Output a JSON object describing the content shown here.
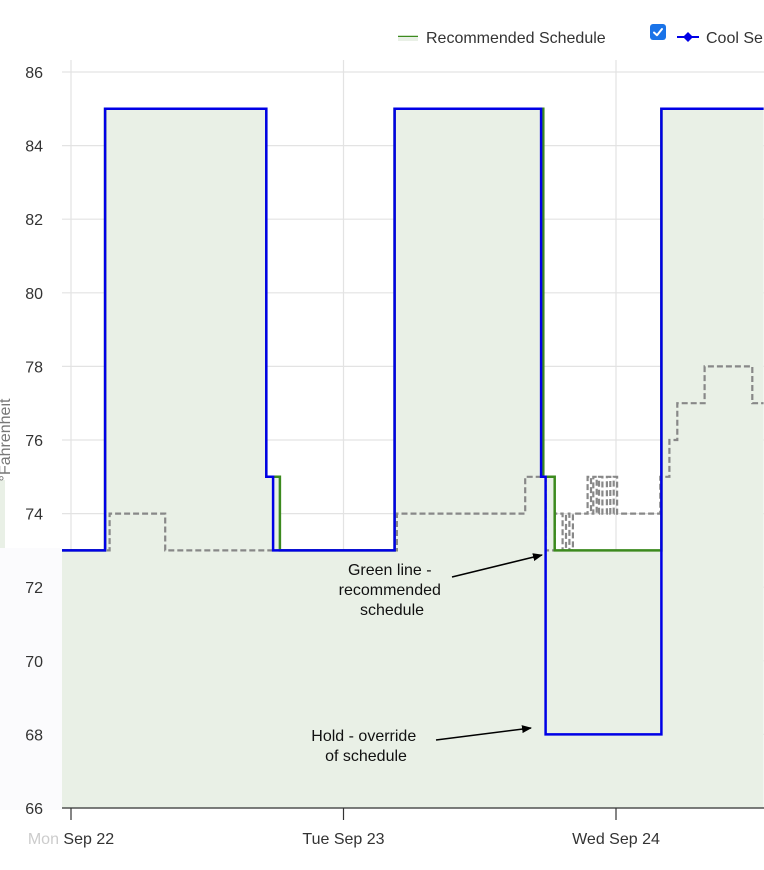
{
  "chart_data": {
    "type": "line",
    "ylabel": "°Fahrenheit",
    "ylim": [
      66,
      86
    ],
    "y_ticks": [
      66,
      68,
      70,
      72,
      74,
      76,
      78,
      80,
      82,
      84,
      86
    ],
    "x_ticks": [
      {
        "x": 0,
        "label": "Mon Sep 22"
      },
      {
        "x": 24,
        "label": "Tue Sep 23"
      },
      {
        "x": 48,
        "label": "Wed Sep 24"
      }
    ],
    "grid": true,
    "legend_position": "top",
    "legend": [
      {
        "label": "Recommended Schedule",
        "color": "#3c8a1e",
        "checked": false
      },
      {
        "label": "Cool Se",
        "color": "#0000e6",
        "checked": true
      }
    ],
    "series": [
      {
        "name": "Recommended Schedule",
        "color": "#3c8a1e",
        "fill": "#e9f0e6",
        "style": "step",
        "points": [
          [
            -0.8,
            73
          ],
          [
            3,
            73
          ],
          [
            3,
            85
          ],
          [
            17.2,
            85
          ],
          [
            17.2,
            75
          ],
          [
            18.4,
            75
          ],
          [
            18.4,
            73
          ],
          [
            28.5,
            73
          ],
          [
            28.5,
            85
          ],
          [
            41.6,
            85
          ],
          [
            41.6,
            75
          ],
          [
            42.6,
            75
          ],
          [
            42.6,
            73
          ],
          [
            52,
            73
          ],
          [
            52,
            85
          ],
          [
            61,
            85
          ]
        ]
      },
      {
        "name": "Cool Se",
        "color": "#0000e6",
        "style": "step",
        "points": [
          [
            -0.8,
            73
          ],
          [
            3,
            73
          ],
          [
            3,
            85
          ],
          [
            17.2,
            85
          ],
          [
            17.2,
            75
          ],
          [
            17.8,
            75
          ],
          [
            17.8,
            73
          ],
          [
            28.5,
            73
          ],
          [
            28.5,
            85
          ],
          [
            41.4,
            85
          ],
          [
            41.4,
            75
          ],
          [
            41.8,
            75
          ],
          [
            41.8,
            68
          ],
          [
            52,
            68
          ],
          [
            52,
            85
          ],
          [
            61,
            85
          ]
        ]
      },
      {
        "name": "",
        "color": "#888888",
        "style": "dashed",
        "points": [
          [
            -0.8,
            73
          ],
          [
            3.4,
            73
          ],
          [
            3.4,
            74
          ],
          [
            8.3,
            74
          ],
          [
            8.3,
            73
          ],
          [
            28.7,
            73
          ],
          [
            28.7,
            74
          ],
          [
            40,
            74
          ],
          [
            40,
            75
          ],
          [
            41.8,
            75
          ],
          [
            41.8,
            73
          ],
          [
            42.6,
            73
          ],
          [
            42.6,
            74
          ],
          [
            43.3,
            74
          ],
          [
            43.3,
            73
          ],
          [
            43.6,
            73
          ],
          [
            43.6,
            74
          ],
          [
            43.9,
            74
          ],
          [
            43.9,
            73
          ],
          [
            44.2,
            73
          ],
          [
            44.2,
            74
          ],
          [
            45.5,
            74
          ],
          [
            45.5,
            75
          ],
          [
            45.8,
            75
          ],
          [
            45.8,
            74
          ],
          [
            46,
            74
          ],
          [
            46,
            75
          ],
          [
            46.3,
            75
          ],
          [
            46.3,
            74
          ],
          [
            46.5,
            74
          ],
          [
            46.5,
            75
          ],
          [
            46.8,
            75
          ],
          [
            46.8,
            74
          ],
          [
            47.2,
            74
          ],
          [
            47.2,
            75
          ],
          [
            47.5,
            75
          ],
          [
            47.5,
            74
          ],
          [
            47.8,
            74
          ],
          [
            47.8,
            75
          ],
          [
            48.1,
            75
          ],
          [
            48.1,
            74
          ],
          [
            51.9,
            74
          ],
          [
            51.9,
            75
          ],
          [
            52.7,
            75
          ],
          [
            52.7,
            76
          ],
          [
            53.4,
            76
          ],
          [
            53.4,
            77
          ],
          [
            55.8,
            77
          ],
          [
            55.8,
            78
          ],
          [
            60,
            78
          ],
          [
            60,
            77
          ],
          [
            61,
            77
          ]
        ]
      }
    ],
    "annotations": [
      {
        "name": "annotation-recommended",
        "lines": [
          "Green line -",
          "recommended",
          "schedule"
        ],
        "target": [
          41.6,
          73
        ]
      },
      {
        "name": "annotation-hold",
        "lines": [
          "Hold - override",
          "of schedule"
        ],
        "target": [
          41.5,
          68
        ]
      }
    ]
  }
}
